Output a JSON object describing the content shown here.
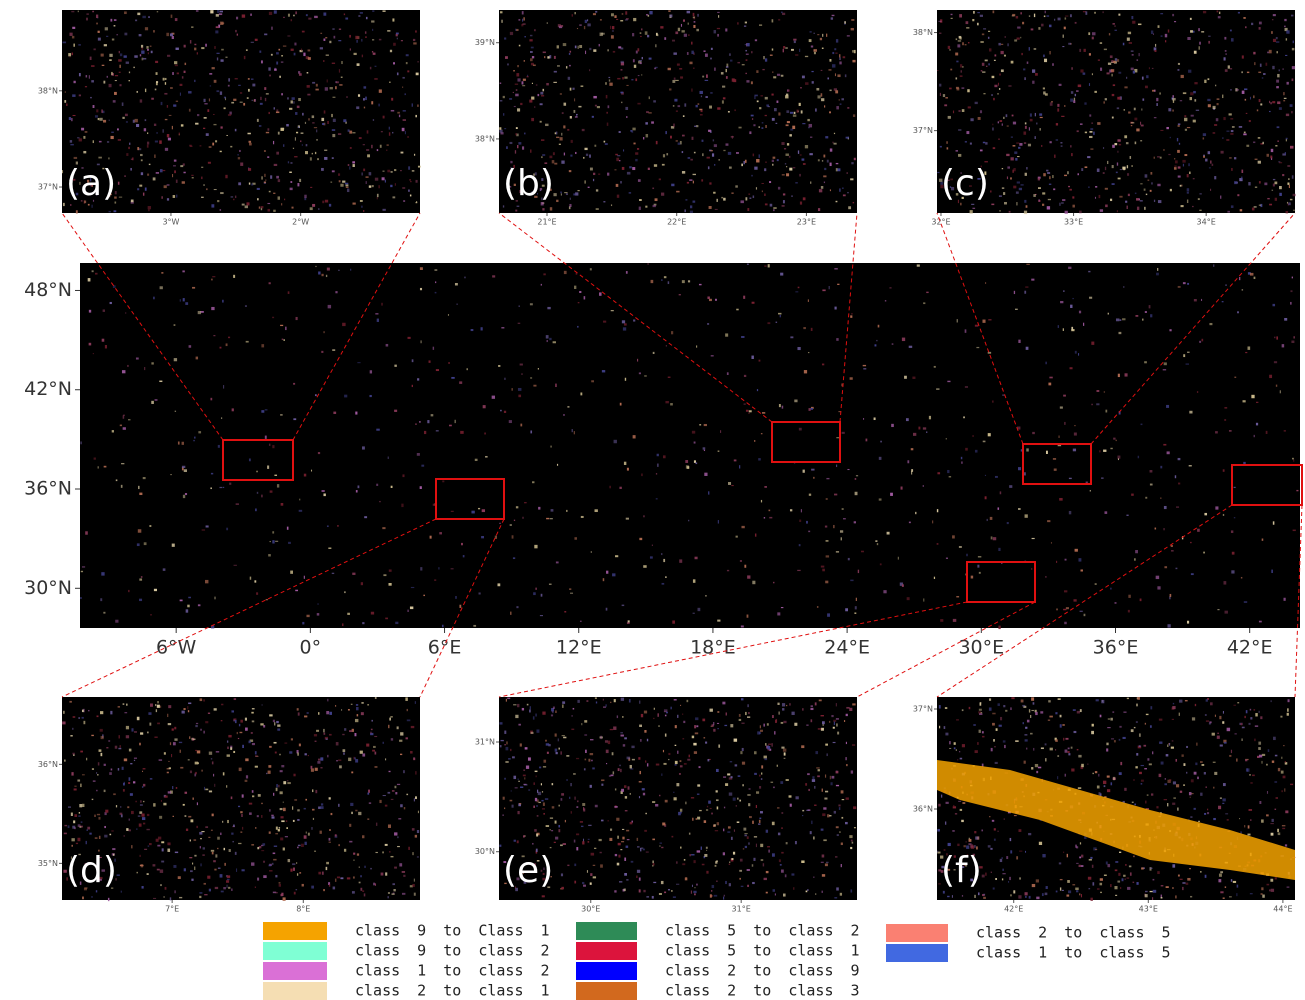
{
  "main": {
    "xlim": [
      -10.3,
      44.25
    ],
    "ylim": [
      27.6,
      49.66
    ],
    "yticks": [
      {
        "value": 48,
        "label": "48°N"
      },
      {
        "value": 42,
        "label": "42°N"
      },
      {
        "value": 36,
        "label": "36°N"
      },
      {
        "value": 30,
        "label": "30°N"
      }
    ],
    "xticks": [
      {
        "value": -6,
        "label": "6°W"
      },
      {
        "value": 0,
        "label": "0°"
      },
      {
        "value": 6,
        "label": "6°E"
      },
      {
        "value": 12,
        "label": "12°E"
      },
      {
        "value": 18,
        "label": "18°E"
      },
      {
        "value": 24,
        "label": "24°E"
      },
      {
        "value": 30,
        "label": "30°E"
      },
      {
        "value": 36,
        "label": "36°E"
      },
      {
        "value": 42,
        "label": "42°E"
      }
    ]
  },
  "panels": [
    {
      "label": "(a)",
      "xlim": [
        -3.84,
        -1.08
      ],
      "ylim": [
        36.73,
        38.84
      ],
      "xticks": [
        {
          "value": -3,
          "label": "3°W"
        },
        {
          "value": -2,
          "label": "2°W"
        }
      ],
      "yticks": [
        {
          "value": 38,
          "label": "38°N"
        },
        {
          "value": 37,
          "label": "37°N"
        }
      ]
    },
    {
      "label": "(b)",
      "xlim": [
        20.63,
        23.39
      ],
      "ylim": [
        37.23,
        39.34
      ],
      "xticks": [
        {
          "value": 21,
          "label": "21°E"
        },
        {
          "value": 22,
          "label": "22°E"
        },
        {
          "value": 23,
          "label": "23°E"
        }
      ],
      "yticks": [
        {
          "value": 39,
          "label": "39°N"
        },
        {
          "value": 38,
          "label": "38°N"
        }
      ]
    },
    {
      "label": "(c)",
      "xlim": [
        31.97,
        34.67
      ],
      "ylim": [
        36.16,
        38.23
      ],
      "xticks": [
        {
          "value": 32,
          "label": "32°E"
        },
        {
          "value": 33,
          "label": "33°E"
        },
        {
          "value": 34,
          "label": "34°E"
        }
      ],
      "yticks": [
        {
          "value": 38,
          "label": "38°N"
        },
        {
          "value": 37,
          "label": "37°N"
        }
      ]
    },
    {
      "label": "(d)",
      "xlim": [
        6.16,
        8.89
      ],
      "ylim": [
        34.63,
        36.68
      ],
      "xticks": [
        {
          "value": 7,
          "label": "7°E"
        },
        {
          "value": 8,
          "label": "8°E"
        }
      ],
      "yticks": [
        {
          "value": 36,
          "label": "36°N"
        },
        {
          "value": 35,
          "label": "35°N"
        }
      ]
    },
    {
      "label": "(e)",
      "xlim": [
        29.39,
        31.77
      ],
      "ylim": [
        29.56,
        31.41
      ],
      "xticks": [
        {
          "value": 30,
          "label": "30°E"
        },
        {
          "value": 31,
          "label": "31°E"
        }
      ],
      "yticks": [
        {
          "value": 31,
          "label": "31°N"
        },
        {
          "value": 30,
          "label": "30°N"
        }
      ]
    },
    {
      "label": "(f)",
      "xlim": [
        41.43,
        44.09
      ],
      "ylim": [
        35.09,
        37.12
      ],
      "xticks": [
        {
          "value": 42,
          "label": "42°E"
        },
        {
          "value": 43,
          "label": "43°E"
        },
        {
          "value": 44,
          "label": "44°E"
        }
      ],
      "yticks": [
        {
          "value": 37,
          "label": "37°N"
        },
        {
          "value": 36,
          "label": "36°N"
        }
      ]
    }
  ],
  "legend": [
    {
      "label": "class 9 to Class 1",
      "color": "#f5a300"
    },
    {
      "label": "class 9 to class 2",
      "color": "#7fffd4"
    },
    {
      "label": "class 1 to class 2",
      "color": "#da70d6"
    },
    {
      "label": "class 2 to class 1",
      "color": "#f5deb3"
    },
    {
      "label": "class 5 to class 2",
      "color": "#2e8b57"
    },
    {
      "label": "class 5 to class 1",
      "color": "#dc143c"
    },
    {
      "label": "class 2 to class 9",
      "color": "#0000ff"
    },
    {
      "label": "class 2 to class 3",
      "color": "#d2691e"
    },
    {
      "label": "class 2 to class 5",
      "color": "#fa8072"
    },
    {
      "label": "class 1 to class 5",
      "color": "#4169e1"
    }
  ]
}
